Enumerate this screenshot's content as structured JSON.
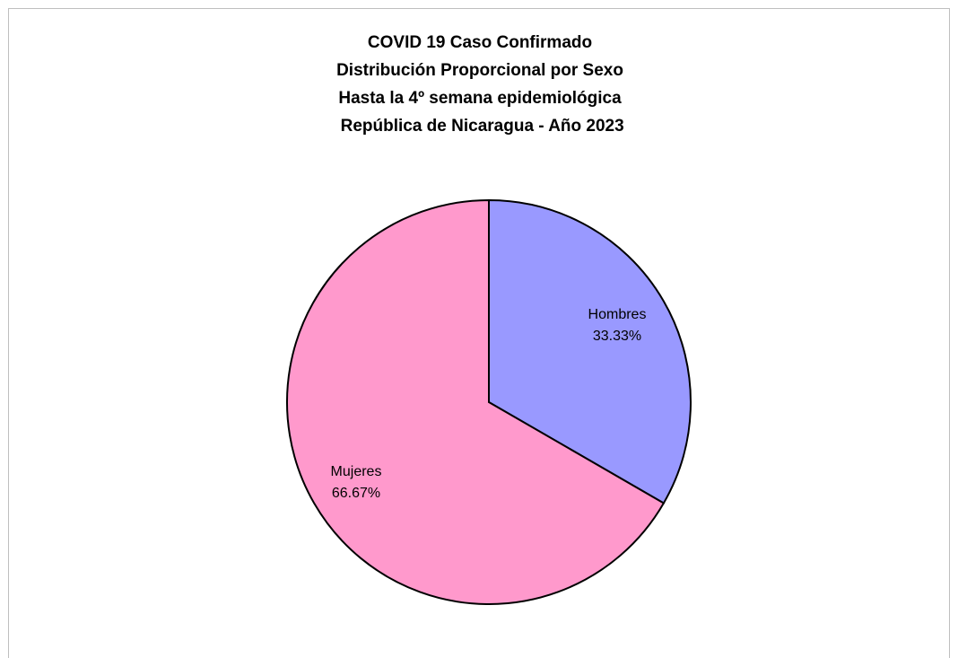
{
  "chart_data": {
    "type": "pie",
    "title_lines": [
      "COVID 19 Caso Confirmado",
      "Distribución Proporcional por Sexo",
      "Hasta la 4º semana epidemiológica",
      " República de Nicaragua - Año 2023"
    ],
    "slices": [
      {
        "label": "Hombres",
        "value_label": "33.33%",
        "value": 33.33,
        "color": "#9999ff"
      },
      {
        "label": "Mujeres",
        "value_label": "66.67%",
        "value": 66.67,
        "color": "#ff99cc"
      }
    ],
    "start_angle": "12 o'clock, clockwise",
    "legend": "none"
  }
}
